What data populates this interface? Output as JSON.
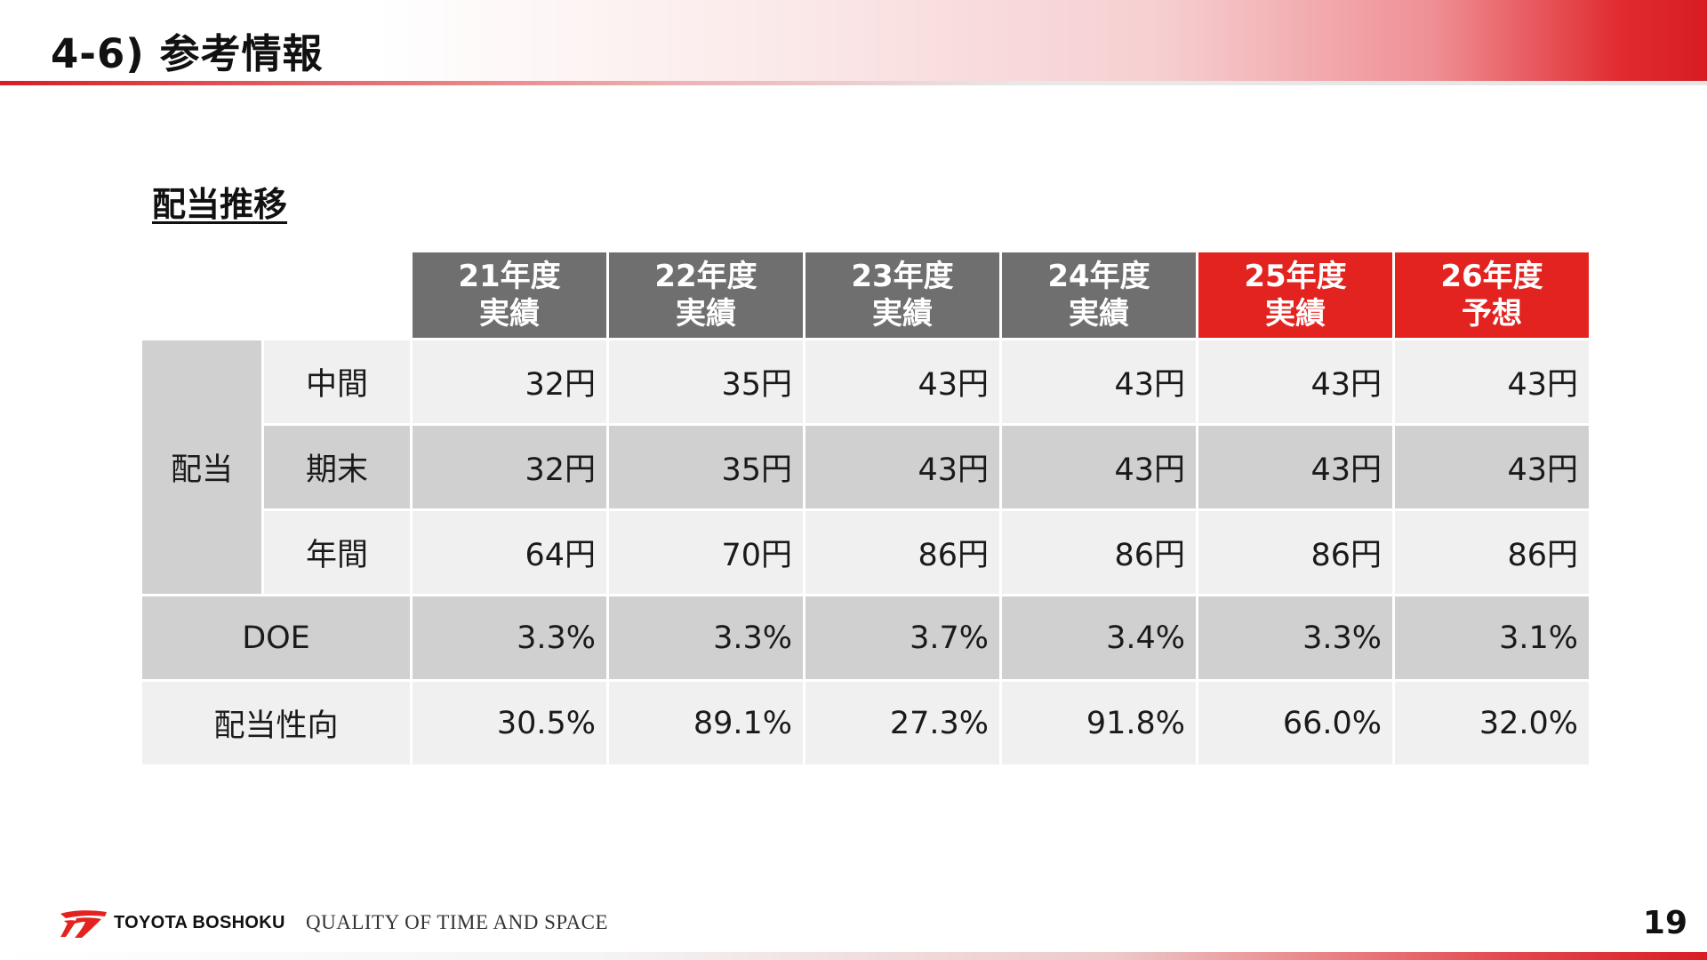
{
  "header": {
    "title": "4-6) 参考情報",
    "accent_color": "#e2231f"
  },
  "section": {
    "title": "配当推移"
  },
  "table": {
    "columns": [
      {
        "year": "21年度",
        "status": "実績",
        "color": "#6f6f6f"
      },
      {
        "year": "22年度",
        "status": "実績",
        "color": "#6f6f6f"
      },
      {
        "year": "23年度",
        "status": "実績",
        "color": "#6f6f6f"
      },
      {
        "year": "24年度",
        "status": "実績",
        "color": "#6f6f6f"
      },
      {
        "year": "25年度",
        "status": "実績",
        "color": "#e2231f"
      },
      {
        "year": "26年度",
        "status": "予想",
        "color": "#e2231f"
      }
    ],
    "dividend_group_label": "配当",
    "rows": [
      {
        "label": "中間",
        "values": [
          "32円",
          "35円",
          "43円",
          "43円",
          "43円",
          "43円"
        ]
      },
      {
        "label": "期末",
        "values": [
          "32円",
          "35円",
          "43円",
          "43円",
          "43円",
          "43円"
        ]
      },
      {
        "label": "年間",
        "values": [
          "64円",
          "70円",
          "86円",
          "86円",
          "86円",
          "86円"
        ]
      },
      {
        "label": "DOE",
        "values": [
          "3.3%",
          "3.3%",
          "3.7%",
          "3.4%",
          "3.3%",
          "3.1%"
        ]
      },
      {
        "label": "配当性向",
        "values": [
          "30.5%",
          "89.1%",
          "27.3%",
          "91.8%",
          "66.0%",
          "32.0%"
        ]
      }
    ]
  },
  "footer": {
    "logo_icon": "toyota-boshoku-logo-icon",
    "brand": "TOYOTA BOSHOKU",
    "tagline": "QUALITY OF TIME AND SPACE",
    "page_number": "19"
  }
}
